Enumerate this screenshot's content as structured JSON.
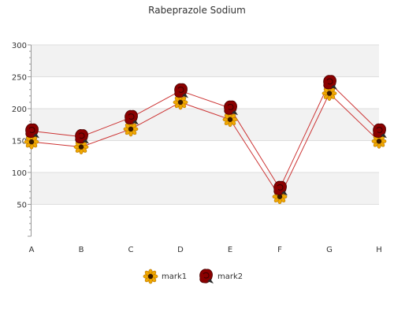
{
  "chart_data": {
    "type": "line",
    "title": "Rabeprazole Sodium",
    "xlabel": "",
    "ylabel": "",
    "categories": [
      "A",
      "B",
      "C",
      "D",
      "E",
      "F",
      "G",
      "H"
    ],
    "ylim": [
      0,
      300
    ],
    "yticks": [
      50,
      100,
      150,
      200,
      250,
      300
    ],
    "grid": "horizontal alternating bands",
    "legend_position": "bottom",
    "series": [
      {
        "name": "mark1",
        "marker": "sunflower-icon",
        "color": "#cc3333",
        "values": [
          148,
          140,
          168,
          210,
          183,
          62,
          224,
          149
        ]
      },
      {
        "name": "mark2",
        "marker": "rose-icon",
        "color": "#cc3333",
        "values": [
          165,
          156,
          186,
          228,
          201,
          75,
          241,
          165
        ]
      }
    ]
  }
}
